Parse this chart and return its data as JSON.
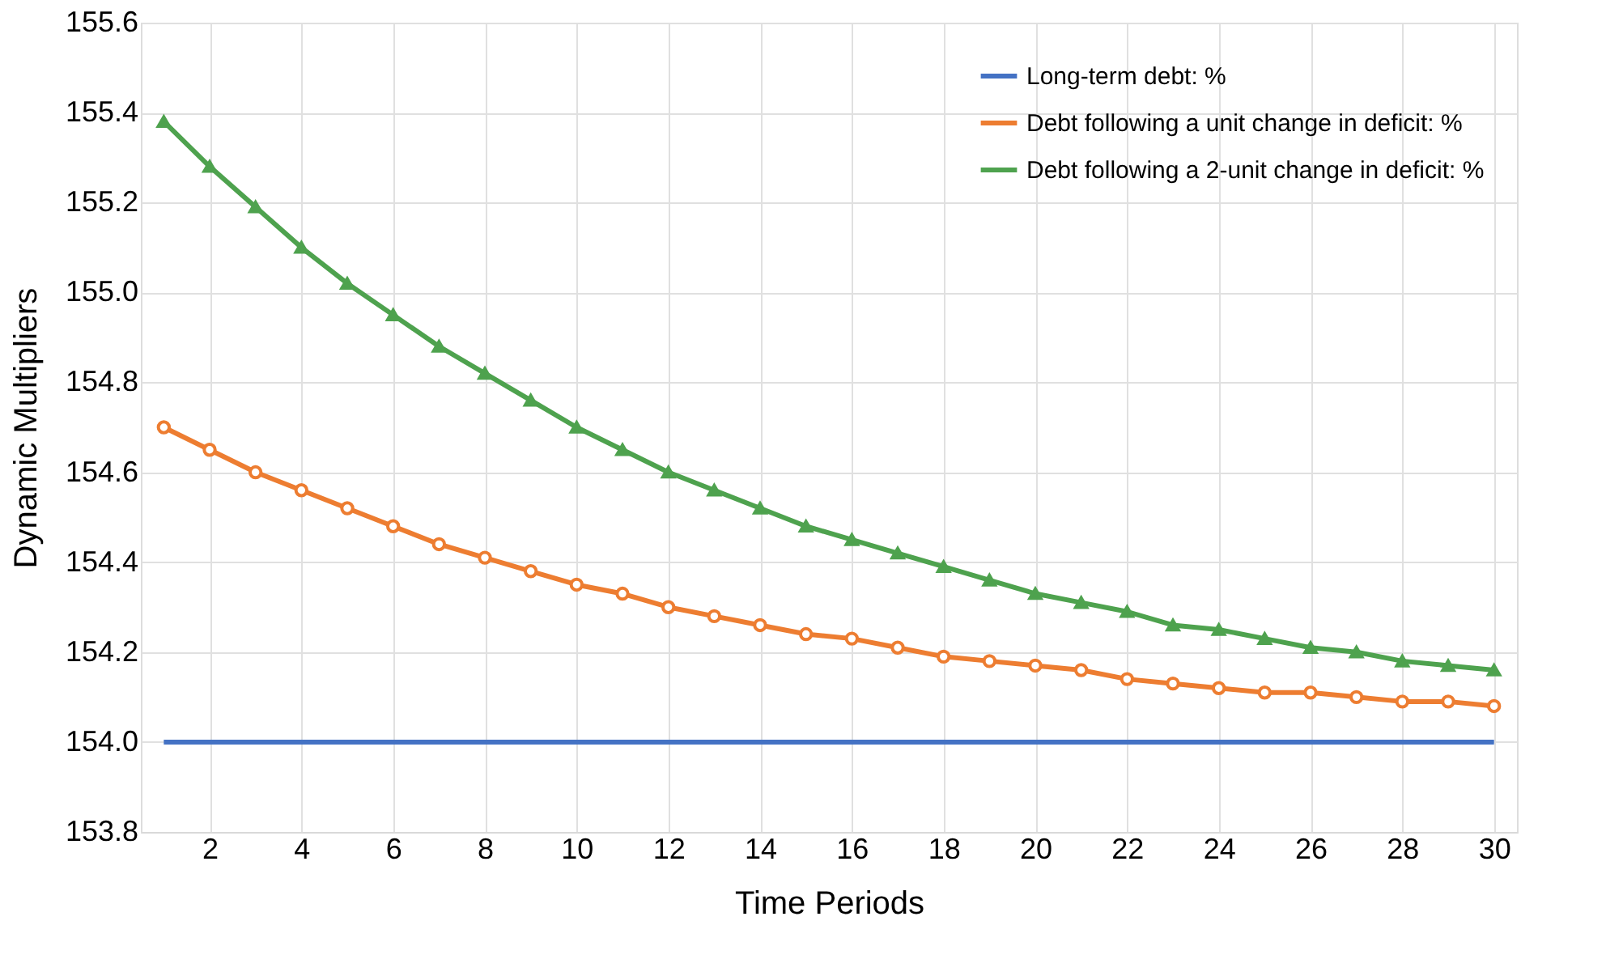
{
  "chart_data": {
    "type": "line",
    "xlabel": "Time Periods",
    "ylabel": "Dynamic Multipliers",
    "x": [
      1,
      2,
      3,
      4,
      5,
      6,
      7,
      8,
      9,
      10,
      11,
      12,
      13,
      14,
      15,
      16,
      17,
      18,
      19,
      20,
      21,
      22,
      23,
      24,
      25,
      26,
      27,
      28,
      29,
      30
    ],
    "xlim": [
      0.5,
      30.5
    ],
    "xticks": [
      2,
      4,
      6,
      8,
      10,
      12,
      14,
      16,
      18,
      20,
      22,
      24,
      26,
      28,
      30
    ],
    "ylim": [
      153.8,
      155.6
    ],
    "yticks": [
      {
        "value": 153.8,
        "label": "153.8"
      },
      {
        "value": 154.0,
        "label": "154.0"
      },
      {
        "value": 154.2,
        "label": "154.2"
      },
      {
        "value": 154.4,
        "label": "154.4"
      },
      {
        "value": 154.6,
        "label": "154.6"
      },
      {
        "value": 154.8,
        "label": "154.8"
      },
      {
        "value": 155.0,
        "label": "155.0"
      },
      {
        "value": 155.2,
        "label": "155.2"
      },
      {
        "value": 155.4,
        "label": "155.4"
      },
      {
        "value": 155.6,
        "label": "155.6"
      }
    ],
    "grid": true,
    "legend": "top right",
    "series": [
      {
        "name": "Long-term debt: %",
        "color": "#4472c4",
        "marker": "none",
        "values": [
          154,
          154,
          154,
          154,
          154,
          154,
          154,
          154,
          154,
          154,
          154,
          154,
          154,
          154,
          154,
          154,
          154,
          154,
          154,
          154,
          154,
          154,
          154,
          154,
          154,
          154,
          154,
          154,
          154,
          154
        ]
      },
      {
        "name": "Debt following a unit change in deficit: %",
        "color": "#ed7d31",
        "marker": "circle",
        "values": [
          154.7,
          154.65,
          154.6,
          154.56,
          154.52,
          154.48,
          154.44,
          154.41,
          154.38,
          154.35,
          154.33,
          154.3,
          154.28,
          154.26,
          154.24,
          154.23,
          154.21,
          154.19,
          154.18,
          154.17,
          154.16,
          154.14,
          154.13,
          154.12,
          154.11,
          154.11,
          154.1,
          154.09,
          154.09,
          154.08
        ]
      },
      {
        "name": "Debt following a 2-unit change in deficit: %",
        "color": "#4ea24e",
        "marker": "triangle",
        "values": [
          155.38,
          155.28,
          155.19,
          155.1,
          155.02,
          154.95,
          154.88,
          154.82,
          154.76,
          154.7,
          154.65,
          154.6,
          154.56,
          154.52,
          154.48,
          154.45,
          154.42,
          154.39,
          154.36,
          154.33,
          154.31,
          154.29,
          154.26,
          154.25,
          154.23,
          154.21,
          154.2,
          154.18,
          154.17,
          154.16
        ]
      }
    ]
  }
}
